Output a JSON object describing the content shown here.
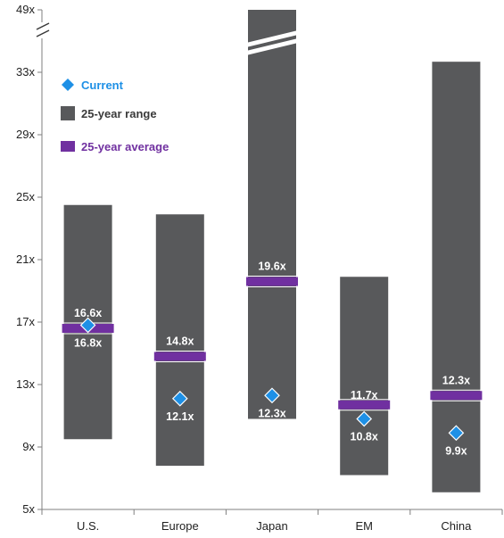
{
  "chart_data": {
    "type": "range",
    "categories": [
      "U.S.",
      "Europe",
      "Japan",
      "EM",
      "China"
    ],
    "series": [
      {
        "name": "25-year range",
        "low": [
          9.5,
          7.8,
          10.8,
          7.2,
          6.1
        ],
        "high": [
          24.5,
          23.9,
          49,
          19.9,
          35.7
        ]
      },
      {
        "name": "25-year average",
        "values": [
          16.6,
          14.8,
          19.6,
          11.7,
          12.3
        ]
      },
      {
        "name": "Current",
        "values": [
          16.8,
          12.1,
          12.3,
          10.8,
          9.9
        ]
      }
    ],
    "average_labels": [
      "16.6x",
      "14.8x",
      "19.6x",
      "11.7x",
      "12.3x"
    ],
    "current_labels": [
      "16.8x",
      "12.1x",
      "12.3x",
      "10.8x",
      "9.9x"
    ],
    "y_ticks": [
      "5x",
      "9x",
      "13x",
      "17x",
      "21x",
      "25x",
      "29x",
      "33x",
      "49x"
    ],
    "y_axis_break": true,
    "ylim": [
      5,
      49
    ],
    "legend_placement": "top-left",
    "legend": [
      {
        "label": "Current",
        "marker": "diamond",
        "color": "#1e90e6"
      },
      {
        "label": "25-year range",
        "marker": "square",
        "color": "#58595b"
      },
      {
        "label": "25-year average",
        "marker": "bar",
        "color": "#7030a0"
      }
    ],
    "colors": {
      "range": "#58595b",
      "average": "#7030a0",
      "current": "#1e90e6",
      "current_label": "#ffffff",
      "current_legend_text": "#1e90e6",
      "range_legend_text": "#3a3a3a",
      "average_legend_text": "#7030a0"
    }
  }
}
